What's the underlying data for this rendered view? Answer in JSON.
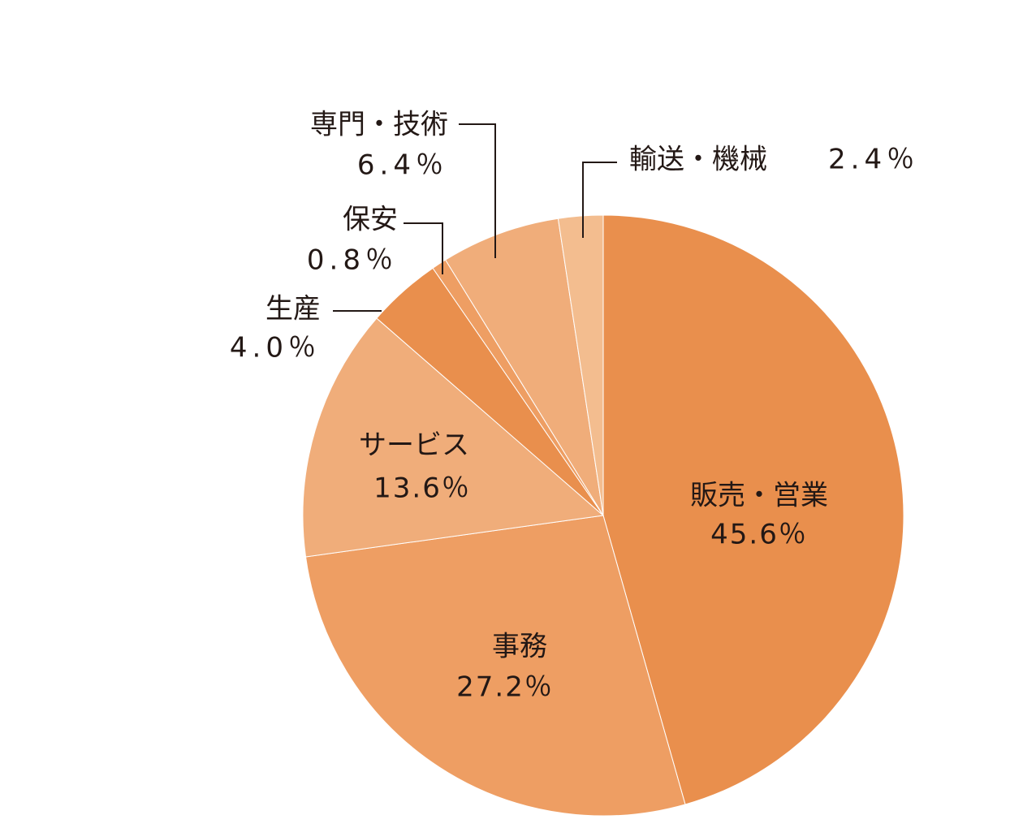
{
  "chart_data": {
    "type": "pie",
    "categories": [
      "販売・営業",
      "事務",
      "サービス",
      "生産",
      "保安",
      "専門・技術",
      "輸送・機械"
    ],
    "values": [
      45.6,
      27.2,
      13.6,
      4.0,
      0.8,
      6.4,
      2.4
    ],
    "value_labels": [
      "45.6％",
      "27.2％",
      "13.6％",
      "4.0％",
      "0.8％",
      "6.4％",
      "2.4％"
    ],
    "colors": [
      "#e98f4d",
      "#ee9e63",
      "#f0ad7a",
      "#e98f4d",
      "#ee9e63",
      "#f0ad7a",
      "#f3bd8f"
    ]
  }
}
